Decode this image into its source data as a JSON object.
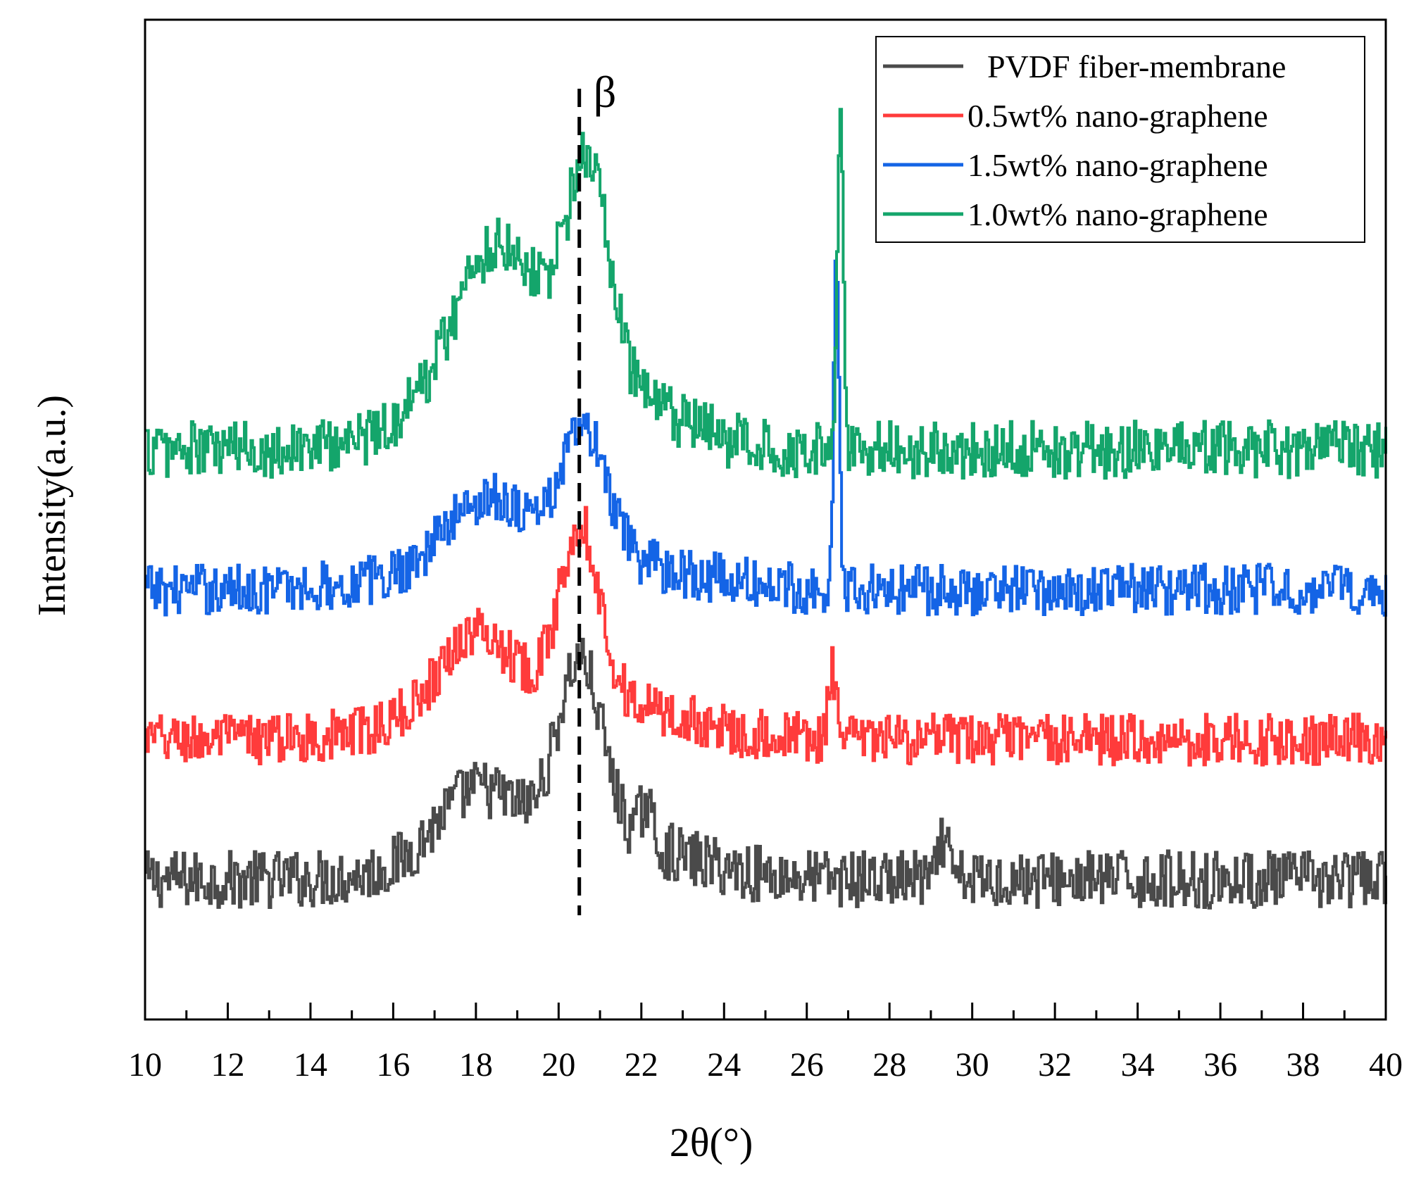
{
  "chart_data": {
    "type": "line",
    "title": "",
    "xlabel": "2θ(°)",
    "ylabel": "Intensity(a.u.)",
    "xlim": [
      10,
      40
    ],
    "ylim": [
      0,
      100
    ],
    "x_ticks": [
      10,
      12,
      14,
      16,
      18,
      20,
      22,
      24,
      26,
      28,
      30,
      32,
      34,
      36,
      38,
      40
    ],
    "y_tick_labels": "none",
    "grid": false,
    "legend_position": "top-right",
    "annotation": {
      "label": "β",
      "x": 20.5,
      "style": "dashed vertical line"
    },
    "series": [
      {
        "name": "PVDF fiber-membrane",
        "color": "#4a4a4a",
        "baseline": 14,
        "noise": 1.8,
        "peaks": [
          {
            "x": 17.9,
            "height": 6,
            "width": 1.3
          },
          {
            "x": 20.5,
            "height": 17,
            "width": 0.75
          },
          {
            "x": 22.1,
            "height": 4,
            "width": 0.2
          },
          {
            "x": 29.3,
            "height": 4,
            "width": 0.15
          }
        ],
        "broad": {
          "center": 20.2,
          "height": 5,
          "width": 3.2
        }
      },
      {
        "name": "0.5wt% nano-graphene",
        "color": "#ff3b3b",
        "baseline": 28,
        "noise": 1.6,
        "peaks": [
          {
            "x": 17.9,
            "height": 7,
            "width": 1.2
          },
          {
            "x": 20.5,
            "height": 17,
            "width": 0.65
          },
          {
            "x": 26.6,
            "height": 7,
            "width": 0.12
          }
        ],
        "broad": {
          "center": 19.8,
          "height": 5,
          "width": 3.4
        }
      },
      {
        "name": "1.5wt% nano-graphene",
        "color": "#1464e6",
        "baseline": 43,
        "noise": 1.6,
        "peaks": [
          {
            "x": 18.2,
            "height": 6,
            "width": 1.4
          },
          {
            "x": 20.6,
            "height": 12,
            "width": 0.75
          },
          {
            "x": 26.7,
            "height": 33,
            "width": 0.09
          }
        ],
        "broad": {
          "center": 19.8,
          "height": 4,
          "width": 3.5
        }
      },
      {
        "name": "1.0wt% nano-graphene",
        "color": "#14a56b",
        "baseline": 57,
        "noise": 1.8,
        "peaks": [
          {
            "x": 18.4,
            "height": 12,
            "width": 1.4
          },
          {
            "x": 20.7,
            "height": 20,
            "width": 0.7
          },
          {
            "x": 26.8,
            "height": 35,
            "width": 0.1
          }
        ],
        "broad": {
          "center": 19.6,
          "height": 10,
          "width": 3.0
        }
      }
    ]
  }
}
